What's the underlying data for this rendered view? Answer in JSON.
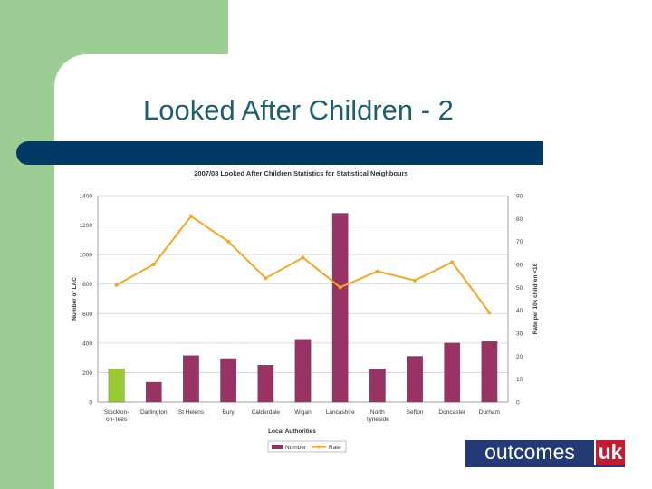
{
  "slide": {
    "title": "Looked After Children - 2",
    "colors": {
      "green": "#9ccd94",
      "bar_navy": "#003a64",
      "title_teal": "#1d5f6e"
    }
  },
  "chart_data": {
    "type": "bar",
    "title": "2007/08 Looked After Children Statistics for Statistical Neighbours",
    "xlabel": "Local Authorities",
    "ylabel": "Number of LAC",
    "y2label": "Rate per 10k children <18",
    "ylim": [
      0,
      1400
    ],
    "y2lim": [
      0,
      90
    ],
    "yticks": [
      "0",
      "200",
      "400",
      "600",
      "800",
      "1000",
      "1200",
      "1400"
    ],
    "y2ticks": [
      "0",
      "10",
      "20",
      "30",
      "40",
      "50",
      "60",
      "70",
      "80",
      "90"
    ],
    "categories": [
      "Stockton-on-Tees",
      "Darlington",
      "St Helens",
      "Bury",
      "Calderdale",
      "Wigan",
      "Lancashire",
      "North Tyneside",
      "Sefton",
      "Doncaster",
      "Durham"
    ],
    "category_labels": [
      [
        "Stockton-",
        "on-Tees"
      ],
      [
        "Darlington"
      ],
      [
        "St Helens"
      ],
      [
        "Bury"
      ],
      [
        "Calderdale"
      ],
      [
        "Wigan"
      ],
      [
        "Lancashire"
      ],
      [
        "North",
        "Tyneside"
      ],
      [
        "Sefton"
      ],
      [
        "Doncaster"
      ],
      [
        "Durham"
      ]
    ],
    "series": [
      {
        "name": "Number",
        "type": "bar",
        "axis": "left",
        "color": "#993366",
        "highlight_color": "#99cc33",
        "highlight_index": 0,
        "values": [
          225,
          135,
          315,
          295,
          250,
          425,
          1280,
          225,
          310,
          400,
          410
        ]
      },
      {
        "name": "Rate",
        "type": "line",
        "axis": "right",
        "color": "#f5a623",
        "values": [
          51,
          60,
          81,
          70,
          54,
          63,
          50,
          57,
          53,
          61,
          39
        ]
      }
    ],
    "grid": true,
    "legend_position": "bottom"
  },
  "logo": {
    "main": "outcomes",
    "suffix": "uk"
  }
}
